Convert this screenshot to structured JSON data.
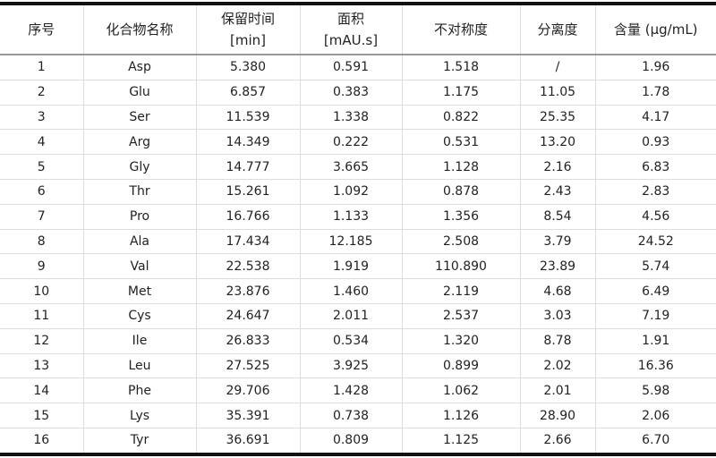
{
  "table": {
    "headers": [
      {
        "main": "序号",
        "sub": ""
      },
      {
        "main": "化合物名称",
        "sub": ""
      },
      {
        "main": "保留时间",
        "sub": "[min]"
      },
      {
        "main": "面积",
        "sub": "[mAU.s]"
      },
      {
        "main": "不对称度",
        "sub": ""
      },
      {
        "main": "分离度",
        "sub": ""
      },
      {
        "main": "含量 (μg/mL)",
        "sub": ""
      }
    ],
    "rows": [
      [
        "1",
        "Asp",
        "5.380",
        "0.591",
        "1.518",
        "/",
        "1.96"
      ],
      [
        "2",
        "Glu",
        "6.857",
        "0.383",
        "1.175",
        "11.05",
        "1.78"
      ],
      [
        "3",
        "Ser",
        "11.539",
        "1.338",
        "0.822",
        "25.35",
        "4.17"
      ],
      [
        "4",
        "Arg",
        "14.349",
        "0.222",
        "0.531",
        "13.20",
        "0.93"
      ],
      [
        "5",
        "Gly",
        "14.777",
        "3.665",
        "1.128",
        "2.16",
        "6.83"
      ],
      [
        "6",
        "Thr",
        "15.261",
        "1.092",
        "0.878",
        "2.43",
        "2.83"
      ],
      [
        "7",
        "Pro",
        "16.766",
        "1.133",
        "1.356",
        "8.54",
        "4.56"
      ],
      [
        "8",
        "Ala",
        "17.434",
        "12.185",
        "2.508",
        "3.79",
        "24.52"
      ],
      [
        "9",
        "Val",
        "22.538",
        "1.919",
        "110.890",
        "23.89",
        "5.74"
      ],
      [
        "10",
        "Met",
        "23.876",
        "1.460",
        "2.119",
        "4.68",
        "6.49"
      ],
      [
        "11",
        "Cys",
        "24.647",
        "2.011",
        "2.537",
        "3.03",
        "7.19"
      ],
      [
        "12",
        "Ile",
        "26.833",
        "0.534",
        "1.320",
        "8.78",
        "1.91"
      ],
      [
        "13",
        "Leu",
        "27.525",
        "3.925",
        "0.899",
        "2.02",
        "16.36"
      ],
      [
        "14",
        "Phe",
        "29.706",
        "1.428",
        "1.062",
        "2.01",
        "5.98"
      ],
      [
        "15",
        "Lys",
        "35.391",
        "0.738",
        "1.126",
        "28.90",
        "2.06"
      ],
      [
        "16",
        "Tyr",
        "36.691",
        "0.809",
        "1.125",
        "2.66",
        "6.70"
      ]
    ]
  }
}
